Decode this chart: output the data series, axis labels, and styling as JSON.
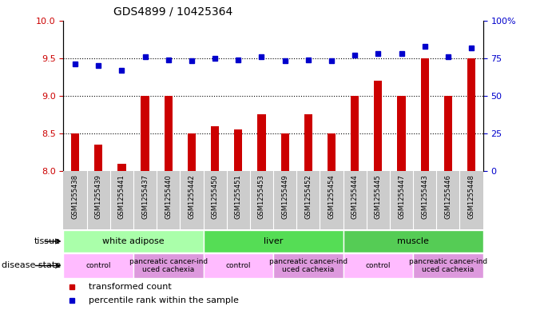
{
  "title": "GDS4899 / 10425364",
  "samples": [
    "GSM1255438",
    "GSM1255439",
    "GSM1255441",
    "GSM1255437",
    "GSM1255440",
    "GSM1255442",
    "GSM1255450",
    "GSM1255451",
    "GSM1255453",
    "GSM1255449",
    "GSM1255452",
    "GSM1255454",
    "GSM1255444",
    "GSM1255445",
    "GSM1255447",
    "GSM1255443",
    "GSM1255446",
    "GSM1255448"
  ],
  "red_values": [
    8.5,
    8.35,
    8.1,
    9.0,
    9.0,
    8.5,
    8.6,
    8.55,
    8.75,
    8.5,
    8.75,
    8.5,
    9.0,
    9.2,
    9.0,
    9.5,
    9.0,
    9.5
  ],
  "blue_values": [
    71,
    70,
    67,
    76,
    74,
    73,
    75,
    74,
    76,
    73,
    74,
    73,
    77,
    78,
    78,
    83,
    76,
    82
  ],
  "ylim_left": [
    8,
    10
  ],
  "ylim_right": [
    0,
    100
  ],
  "yticks_left": [
    8,
    8.5,
    9,
    9.5,
    10
  ],
  "yticks_right": [
    0,
    25,
    50,
    75,
    100
  ],
  "bar_color": "#cc0000",
  "dot_color": "#0000cc",
  "tissue_groups": [
    {
      "label": "white adipose",
      "start": 0,
      "end": 5,
      "color": "#aaffaa"
    },
    {
      "label": "liver",
      "start": 6,
      "end": 11,
      "color": "#55dd55"
    },
    {
      "label": "muscle",
      "start": 12,
      "end": 17,
      "color": "#55cc55"
    }
  ],
  "disease_groups": [
    {
      "label": "control",
      "start": 0,
      "end": 2,
      "color": "#ffbbff"
    },
    {
      "label": "pancreatic cancer-ind\nuced cachexia",
      "start": 3,
      "end": 5,
      "color": "#dd99dd"
    },
    {
      "label": "control",
      "start": 6,
      "end": 8,
      "color": "#ffbbff"
    },
    {
      "label": "pancreatic cancer-ind\nuced cachexia",
      "start": 9,
      "end": 11,
      "color": "#dd99dd"
    },
    {
      "label": "control",
      "start": 12,
      "end": 14,
      "color": "#ffbbff"
    },
    {
      "label": "pancreatic cancer-ind\nuced cachexia",
      "start": 15,
      "end": 17,
      "color": "#dd99dd"
    }
  ],
  "tick_label_color_left": "#cc0000",
  "tick_label_color_right": "#0000cc",
  "title_fontsize": 10,
  "legend_items": [
    {
      "label": "transformed count",
      "color": "#cc0000"
    },
    {
      "label": "percentile rank within the sample",
      "color": "#0000cc"
    }
  ]
}
